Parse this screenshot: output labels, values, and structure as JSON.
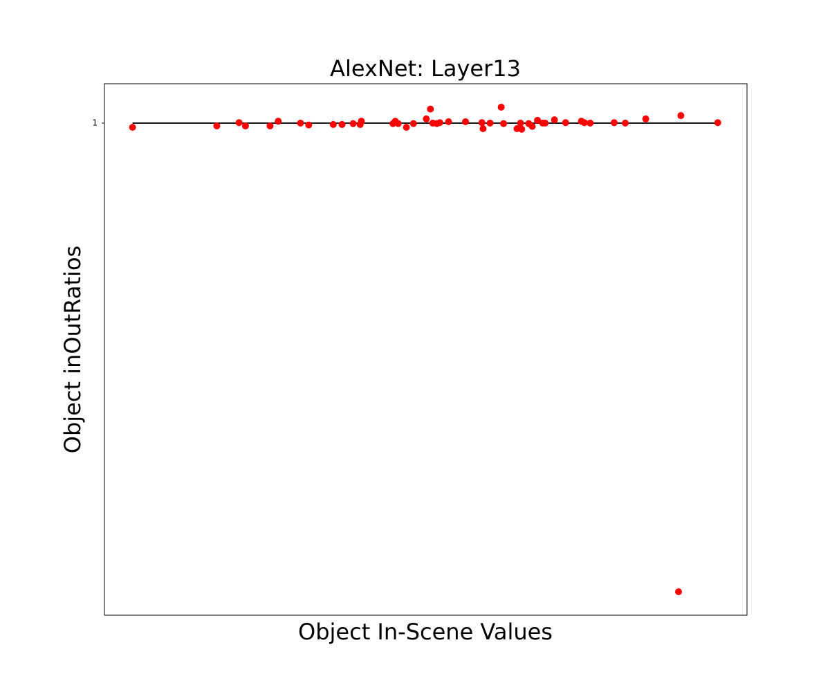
{
  "chart_data": {
    "type": "scatter",
    "title": "AlexNet: Layer13",
    "x_label": "Object In-Scene Values",
    "y_label": "Object inOutRatios",
    "color": "#ff0000",
    "x": [
      0,
      0.144,
      0.182,
      0.193,
      0.235,
      0.249,
      0.287,
      0.301,
      0.343,
      0.358,
      0.377,
      0.389,
      0.391,
      0.445,
      0.449,
      0.454,
      0.468,
      0.48,
      0.502,
      0.509,
      0.513,
      0.52,
      0.525,
      0.54,
      0.569,
      0.597,
      0.599,
      0.611,
      0.63,
      0.634,
      0.657,
      0.663,
      0.665,
      0.677,
      0.683,
      0.692,
      0.701,
      0.705,
      0.721,
      0.74,
      0.767,
      0.772,
      0.782,
      0.823,
      0.842,
      0.877,
      0.937,
      0.933,
      1.0
    ],
    "values": [
      0.991,
      0.994,
      1.001,
      0.994,
      0.994,
      1.004,
      1.0,
      0.996,
      0.997,
      0.997,
      0.999,
      0.997,
      1.004,
      0.999,
      1.004,
      0.999,
      0.991,
      0.999,
      1.009,
      1.03,
      1.0,
      0.999,
      1.001,
      1.003,
      1.003,
      1.001,
      0.988,
      1.0,
      1.034,
      0.999,
      0.988,
      1.0,
      0.987,
      0.999,
      0.993,
      1.006,
      1.0,
      1.0,
      1.007,
      1.001,
      1.004,
      1.001,
      1.0,
      1.001,
      1.0,
      1.009,
      1.016,
      0,
      1.001
    ],
    "reference_line": {
      "x": [
        0,
        1.0
      ],
      "values": [
        1,
        1
      ],
      "color": "#000000"
    },
    "xlim": [
      -0.048,
      1.05
    ],
    "ylim": [
      -0.05,
      1.084
    ],
    "yticks": [
      1
    ]
  }
}
